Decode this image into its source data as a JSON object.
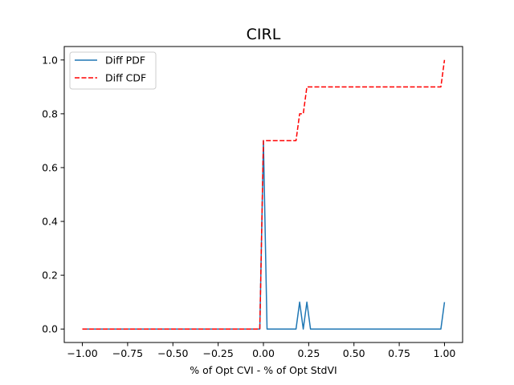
{
  "chart_data": {
    "type": "line",
    "title": "CIRL",
    "xlabel": "% of Opt CVI - % of Opt StdVI",
    "ylabel": "",
    "xlim": [
      -1.1,
      1.1
    ],
    "ylim": [
      -0.05,
      1.05
    ],
    "xticks": [
      -1.0,
      -0.75,
      -0.5,
      -0.25,
      0.0,
      0.25,
      0.5,
      0.75,
      1.0
    ],
    "xtick_labels": [
      "−1.00",
      "−0.75",
      "−0.50",
      "−0.25",
      "0.00",
      "0.25",
      "0.50",
      "0.75",
      "1.00"
    ],
    "yticks": [
      0.0,
      0.2,
      0.4,
      0.6,
      0.8,
      1.0
    ],
    "ytick_labels": [
      "0.0",
      "0.2",
      "0.4",
      "0.6",
      "0.8",
      "1.0"
    ],
    "grid": false,
    "legend_position": "upper-left",
    "series": [
      {
        "name": "Diff PDF",
        "color": "#1f77b4",
        "style": "solid",
        "x": [
          -1.0,
          -0.02,
          0.0,
          0.02,
          0.18,
          0.2,
          0.22,
          0.24,
          0.26,
          0.98,
          1.0
        ],
        "y": [
          0.0,
          0.0,
          0.7,
          0.0,
          0.0,
          0.1,
          0.0,
          0.1,
          0.0,
          0.0,
          0.1
        ]
      },
      {
        "name": "Diff CDF",
        "color": "#ff0000",
        "style": "dashed",
        "x": [
          -1.0,
          -0.02,
          0.0,
          0.18,
          0.2,
          0.22,
          0.24,
          0.98,
          1.0
        ],
        "y": [
          0.0,
          0.0,
          0.7,
          0.7,
          0.8,
          0.8,
          0.9,
          0.9,
          1.0
        ]
      }
    ]
  }
}
